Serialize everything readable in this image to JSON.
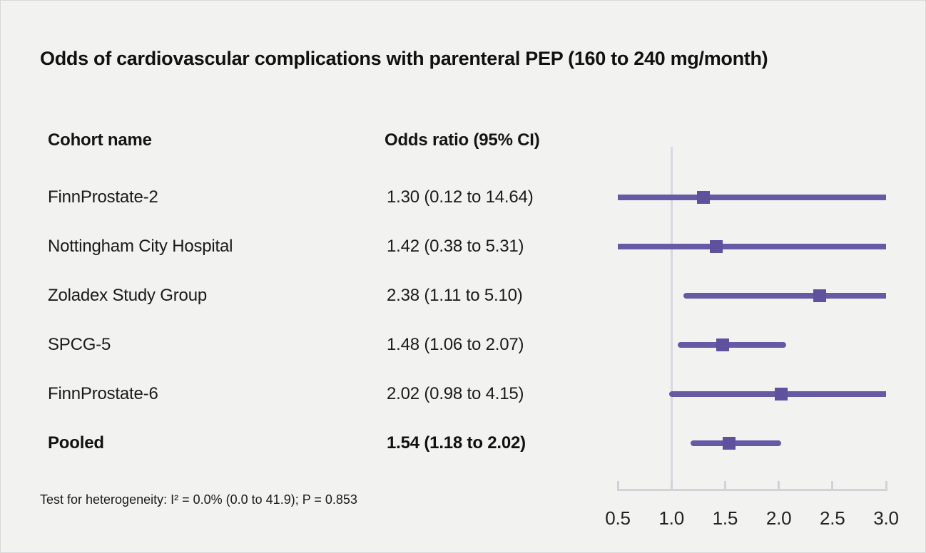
{
  "title": "Odds of cardiovascular complications with parenteral PEP (160 to 240 mg/month)",
  "chart_data": {
    "type": "forest",
    "title": "Odds of cardiovascular complications with parenteral PEP (160 to 240 mg/month)",
    "columns": [
      "Cohort name",
      "Odds ratio (95% CI)"
    ],
    "rows": [
      {
        "cohort": "FinnProstate-2",
        "or_label": "1.30 (0.12 to 14.64)",
        "or": 1.3,
        "lo": 0.12,
        "hi": 14.64,
        "pooled": false
      },
      {
        "cohort": "Nottingham City Hospital",
        "or_label": "1.42 (0.38 to 5.31)",
        "or": 1.42,
        "lo": 0.38,
        "hi": 5.31,
        "pooled": false
      },
      {
        "cohort": "Zoladex Study Group",
        "or_label": "2.38 (1.11 to 5.10)",
        "or": 2.38,
        "lo": 1.11,
        "hi": 5.1,
        "pooled": false
      },
      {
        "cohort": "SPCG-5",
        "or_label": "1.48 (1.06 to 2.07)",
        "or": 1.48,
        "lo": 1.06,
        "hi": 2.07,
        "pooled": false
      },
      {
        "cohort": "FinnProstate-6",
        "or_label": "2.02 (0.98 to 4.15)",
        "or": 2.02,
        "lo": 0.98,
        "hi": 4.15,
        "pooled": false
      },
      {
        "cohort": "Pooled",
        "or_label": "1.54 (1.18 to 2.02)",
        "or": 1.54,
        "lo": 1.18,
        "hi": 2.02,
        "pooled": true
      }
    ],
    "axis": {
      "min": 0.5,
      "max": 3.0,
      "ticks": [
        "0.5",
        "1.0",
        "1.5",
        "2.0",
        "2.5",
        "3.0"
      ],
      "tick_values": [
        0.5,
        1.0,
        1.5,
        2.0,
        2.5,
        3.0
      ],
      "reference": 1.0
    },
    "footnote": "Test for heterogeneity: I² = 0.0% (0.0 to 41.9); P = 0.853",
    "colors": {
      "ci_line": "#675aa5",
      "marker": "#5f519d",
      "axis": "#d2d3d8",
      "reference_line": "#d7d9e3",
      "background": "#f2f2f1",
      "text": "#141414"
    },
    "legend": null,
    "grid": false
  }
}
